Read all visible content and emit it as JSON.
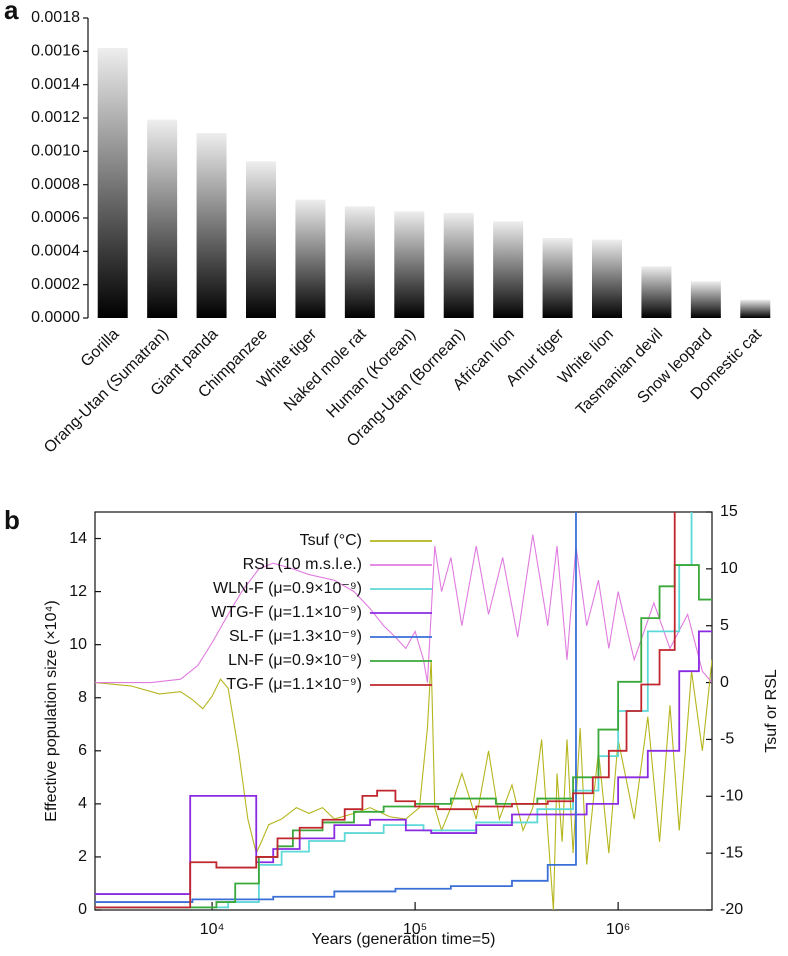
{
  "chart_data": [
    {
      "type": "bar",
      "panel": "a",
      "categories": [
        "Gorilla",
        "Orang-Utan (Sumatran)",
        "Giant panda",
        "Chimpanzee",
        "White tiger",
        "Naked mole rat",
        "Human (Korean)",
        "Orang-Utan (Bornean)",
        "African lion",
        "Amur tiger",
        "White lion",
        "Tasmanian devil",
        "Snow leopard",
        "Domestic cat"
      ],
      "values": [
        0.00162,
        0.00119,
        0.00111,
        0.00094,
        0.00071,
        0.00067,
        0.00064,
        0.00063,
        0.00058,
        0.00048,
        0.00047,
        0.00031,
        0.00022,
        0.00011
      ],
      "ylim": [
        0,
        0.0018
      ],
      "yticks": [
        {
          "value": 0,
          "label": "0.0000"
        },
        {
          "value": 0.0002,
          "label": "0.0002"
        },
        {
          "value": 0.0004,
          "label": "0.0004"
        },
        {
          "value": 0.0006,
          "label": "0.0006"
        },
        {
          "value": 0.0008,
          "label": "0.0008"
        },
        {
          "value": 0.001,
          "label": "0.0010"
        },
        {
          "value": 0.0012,
          "label": "0.0012"
        },
        {
          "value": 0.0014,
          "label": "0.0014"
        },
        {
          "value": 0.0016,
          "label": "0.0016"
        },
        {
          "value": 0.0018,
          "label": "0.0018"
        }
      ]
    },
    {
      "type": "line",
      "panel": "b",
      "xlabel": "Years (generation time=5)",
      "ylabel": "Effective population size (×10⁴)",
      "y2label": "Tsuf or RSL",
      "xscale": "log",
      "xlim": [
        2650,
        2900000
      ],
      "xticks": [
        {
          "value": 10000,
          "label": "10⁴"
        },
        {
          "value": 100000,
          "label": "10⁵"
        },
        {
          "value": 1000000,
          "label": "10⁶"
        }
      ],
      "ylim": [
        0,
        15
      ],
      "yticks": [
        0,
        2,
        4,
        6,
        8,
        10,
        12,
        14
      ],
      "y2lim": [
        -20,
        15
      ],
      "y2ticks": [
        -20,
        -15,
        -10,
        -5,
        0,
        5,
        10,
        15
      ],
      "series": [
        {
          "name": "Tsuf (°C)",
          "color": "#b5b51e",
          "axis": "y2",
          "x": [
            2650,
            4000,
            5500,
            7000,
            8000,
            9000,
            10000,
            11000,
            12000,
            13500,
            15000,
            16500,
            17500,
            19000,
            22000,
            26000,
            30000,
            35000,
            40000,
            50000,
            60000,
            75000,
            90000,
            105000,
            115000,
            120000,
            125000,
            135000,
            150000,
            170000,
            200000,
            230000,
            260000,
            300000,
            340000,
            380000,
            420000,
            450000,
            480000,
            500000,
            530000,
            560000,
            600000,
            650000,
            700000,
            800000,
            900000,
            1000000,
            1200000,
            1400000,
            1600000,
            1800000,
            2000000,
            2300000,
            2600000,
            2900000
          ],
          "values": [
            0,
            -0.3,
            -1,
            -0.8,
            -1.5,
            -2.3,
            -1.2,
            0.3,
            -0.5,
            -6,
            -12,
            -15,
            -14,
            -12.5,
            -12,
            -11,
            -11.5,
            -11,
            -12,
            -11.5,
            -11,
            -11.8,
            -12,
            -11,
            -4,
            2,
            -11,
            -13,
            -11,
            -8,
            -12,
            -6,
            -12,
            -9,
            -13,
            -11,
            -5,
            -13,
            -20,
            -8,
            -14,
            -5,
            -15,
            -4,
            -16,
            -6,
            -15,
            -5,
            -12,
            -3,
            -14,
            -2,
            -13,
            1,
            -6,
            2
          ]
        },
        {
          "name": "RSL (10 m.s.l.e.)",
          "color": "#e07be0",
          "axis": "y2",
          "x": [
            2650,
            5000,
            7000,
            8500,
            10000,
            12000,
            14000,
            17000,
            20000,
            25000,
            30000,
            40000,
            50000,
            60000,
            70000,
            80000,
            90000,
            100000,
            110000,
            115000,
            125000,
            135000,
            150000,
            170000,
            200000,
            230000,
            270000,
            320000,
            380000,
            450000,
            500000,
            560000,
            620000,
            700000,
            800000,
            900000,
            1000000,
            1200000,
            1500000,
            1800000,
            2200000,
            2600000,
            2900000
          ],
          "values": [
            0,
            0,
            0.3,
            1.5,
            3.5,
            6,
            8,
            10,
            10.5,
            10,
            9.5,
            9,
            8,
            6.5,
            5,
            4,
            3,
            4.5,
            2,
            0,
            12,
            8,
            11,
            5,
            12,
            6,
            11,
            4,
            13,
            5,
            12,
            2,
            12,
            5,
            9,
            3,
            8,
            2,
            7,
            3,
            6,
            1,
            0
          ]
        },
        {
          "name": "WLN-F (μ=0.9×10⁻⁹)",
          "color": "#5fd8d8",
          "drawstyle": "steps-post",
          "x": [
            2650,
            12000,
            17000,
            22000,
            30000,
            45000,
            70000,
            110000,
            200000,
            400000,
            600000,
            800000,
            1000000,
            1400000,
            2000000,
            2300000,
            2900000
          ],
          "values": [
            0.1,
            0.3,
            1.7,
            2.2,
            2.6,
            2.9,
            3.2,
            3.0,
            3.3,
            3.8,
            4.5,
            5.8,
            7.5,
            10.5,
            13,
            15.5,
            15.5
          ]
        },
        {
          "name": "WTG-F (μ=1.1×10⁻⁹)",
          "color": "#8a2be2",
          "drawstyle": "steps-post",
          "x": [
            2650,
            7800,
            10500,
            16500,
            20000,
            27000,
            40000,
            60000,
            90000,
            120000,
            200000,
            300000,
            500000,
            700000,
            1000000,
            1400000,
            2000000,
            2500000,
            2900000
          ],
          "values": [
            0.6,
            4.3,
            4.3,
            1.8,
            2.3,
            2.7,
            3.2,
            3.4,
            3.0,
            2.9,
            3.2,
            3.6,
            3.6,
            4.0,
            5.0,
            6.0,
            9.0,
            10.5,
            10.5
          ]
        },
        {
          "name": "SL-F (μ=1.3×10⁻⁹)",
          "color": "#3a6fd8",
          "drawstyle": "steps-post",
          "x": [
            2650,
            8000,
            20000,
            40000,
            80000,
            150000,
            300000,
            450000,
            620000,
            640000
          ],
          "values": [
            0.3,
            0.4,
            0.5,
            0.7,
            0.8,
            0.9,
            1.1,
            1.7,
            15.5,
            15.5
          ]
        },
        {
          "name": "LN-F (μ=0.9×10⁻⁹)",
          "color": "#3aa83a",
          "drawstyle": "steps-post",
          "x": [
            2650,
            10500,
            13000,
            17000,
            21000,
            25000,
            35000,
            50000,
            70000,
            100000,
            150000,
            250000,
            400000,
            600000,
            800000,
            1000000,
            1300000,
            1600000,
            1900000,
            2500000,
            2900000
          ],
          "values": [
            0.1,
            0.3,
            1.0,
            2.0,
            2.4,
            3.0,
            3.3,
            3.7,
            3.9,
            4.0,
            4.2,
            4.0,
            4.2,
            5.0,
            6.8,
            8.6,
            11.0,
            12.2,
            13.0,
            11.7,
            11.7
          ]
        },
        {
          "name": "TG-F (μ=1.1×10⁻⁹)",
          "color": "#c0262d",
          "drawstyle": "steps-post",
          "x": [
            2650,
            7800,
            10500,
            16500,
            21000,
            27000,
            35000,
            45000,
            55000,
            65000,
            80000,
            100000,
            130000,
            200000,
            300000,
            450000,
            600000,
            750000,
            900000,
            1100000,
            1300000,
            1600000,
            1900000,
            2900000
          ],
          "values": [
            0.1,
            1.8,
            1.6,
            2.0,
            2.7,
            3.1,
            3.4,
            3.8,
            4.3,
            4.5,
            4.1,
            3.9,
            3.8,
            3.9,
            4.0,
            4.1,
            4.4,
            5.0,
            6.0,
            7.5,
            8.5,
            9.8,
            16,
            16
          ]
        }
      ]
    }
  ]
}
